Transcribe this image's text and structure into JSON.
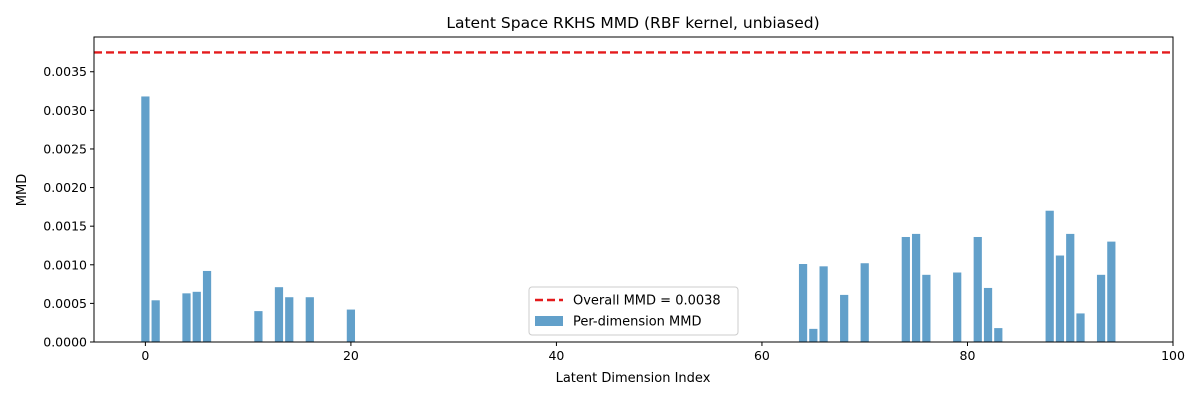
{
  "chart_data": {
    "type": "bar",
    "title": "Latent Space RKHS MMD (RBF kernel, unbiased)",
    "xlabel": "Latent Dimension Index",
    "ylabel": "MMD",
    "xlim": [
      -5,
      100
    ],
    "ylim": [
      0,
      0.00395
    ],
    "xticks": [
      0,
      20,
      40,
      60,
      80,
      100
    ],
    "yticks": [
      0.0,
      0.0005,
      0.001,
      0.0015,
      0.002,
      0.0025,
      0.003,
      0.0035
    ],
    "ytick_labels": [
      "0.0000",
      "0.0005",
      "0.0010",
      "0.0015",
      "0.0020",
      "0.0025",
      "0.0030",
      "0.0035"
    ],
    "grid": false,
    "legend_position": "lower center",
    "bar_color": "#1f77b4",
    "line_color": "#e41a1c",
    "series": [
      {
        "name": "Per-dimension MMD",
        "type": "bar",
        "x": [
          0,
          1,
          4,
          5,
          6,
          11,
          13,
          14,
          16,
          20,
          64,
          65,
          66,
          68,
          70,
          74,
          75,
          76,
          79,
          81,
          82,
          83,
          88,
          89,
          90,
          91,
          93,
          94
        ],
        "values": [
          0.00318,
          0.00054,
          0.00063,
          0.00065,
          0.00092,
          0.0004,
          0.00071,
          0.00058,
          0.00058,
          0.00042,
          0.00101,
          0.00017,
          0.00098,
          0.00061,
          0.00102,
          0.00136,
          0.0014,
          0.00087,
          0.0009,
          0.00136,
          0.0007,
          0.00018,
          0.0017,
          0.00112,
          0.0014,
          0.00037,
          0.00087,
          0.0013
        ]
      },
      {
        "name": "Overall MMD = 0.0038",
        "type": "hline",
        "value": 0.00375
      }
    ]
  }
}
